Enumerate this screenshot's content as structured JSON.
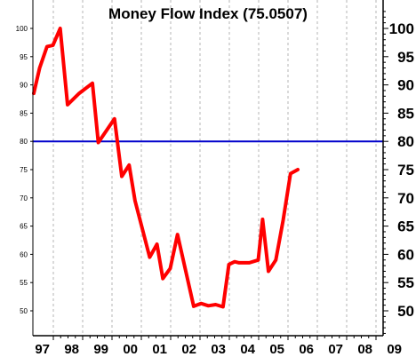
{
  "chart_data": {
    "type": "line",
    "title": "Money Flow Index (75.0507)",
    "xlabel": "",
    "ylabel": "",
    "ylim": [
      45,
      103
    ],
    "xlim": [
      1997,
      2008.9
    ],
    "yticks": [
      50,
      55,
      60,
      65,
      70,
      75,
      80,
      85,
      90,
      95,
      100
    ],
    "y_left_tick_labels": [
      "50",
      "55",
      "60",
      "65",
      "70",
      "75",
      "80",
      "85",
      "90",
      "95",
      "100"
    ],
    "y_right_tick_labels": [
      "50",
      "55",
      "60",
      "65",
      "70",
      "75",
      "80",
      "85",
      "90",
      "95",
      "100"
    ],
    "x_tick_positions": [
      1997,
      1998,
      1999,
      2000,
      2001,
      2002,
      2003,
      2004,
      2005,
      2006,
      2007,
      2008,
      2009
    ],
    "x_tick_labels": [
      "97",
      "98",
      "99",
      "00",
      "01",
      "02",
      "03",
      "04",
      "05",
      "06",
      "07",
      "08",
      "09"
    ],
    "grid": "vertical dashed",
    "reference_line": {
      "y": 80,
      "color": "#0000cc"
    },
    "series": [
      {
        "color": "#ff0000",
        "x": [
          1997.0,
          1997.2,
          1997.45,
          1997.65,
          1997.9,
          1998.15,
          1998.55,
          1999.0,
          1999.2,
          1999.75,
          2000.0,
          2000.25,
          2000.45,
          2000.95,
          2001.2,
          2001.4,
          2001.65,
          2001.9,
          2002.45,
          2002.7,
          2002.95,
          2003.2,
          2003.45,
          2003.65,
          2003.85,
          2004.0,
          2004.35,
          2004.65,
          2004.8,
          2005.0,
          2005.25,
          2005.5,
          2005.75,
          2006.0
        ],
        "values": [
          88.5,
          93.0,
          96.8,
          97.0,
          100.0,
          86.5,
          88.5,
          90.3,
          79.8,
          84.0,
          73.8,
          75.8,
          69.5,
          59.5,
          61.8,
          55.7,
          57.5,
          63.5,
          50.8,
          51.3,
          50.9,
          51.1,
          50.7,
          58.2,
          58.7,
          58.5,
          58.5,
          59.0,
          66.2,
          57.0,
          59.0,
          66.0,
          74.3,
          75.0
        ]
      }
    ]
  }
}
